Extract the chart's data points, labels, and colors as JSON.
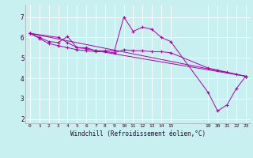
{
  "background_color": "#c8f0f0",
  "line_color": "#aa00aa",
  "xlabel": "Windchill (Refroidissement éolien,°C)",
  "xlim": [
    -0.5,
    23.5
  ],
  "ylim": [
    1.8,
    7.6
  ],
  "yticks": [
    2,
    3,
    4,
    5,
    6,
    7
  ],
  "xticks": [
    0,
    1,
    2,
    3,
    4,
    5,
    6,
    7,
    8,
    9,
    10,
    11,
    12,
    13,
    14,
    15,
    19,
    20,
    21,
    22,
    23
  ],
  "lines": [
    {
      "x": [
        0,
        1,
        2,
        3,
        4,
        5,
        6,
        7,
        8,
        9,
        10,
        11,
        12,
        13,
        14,
        15,
        19,
        20,
        21,
        22,
        23
      ],
      "y": [
        6.2,
        6.0,
        5.8,
        5.75,
        6.05,
        5.5,
        5.5,
        5.35,
        5.35,
        5.35,
        7.0,
        6.3,
        6.5,
        6.4,
        6.0,
        5.8,
        3.3,
        2.4,
        2.7,
        3.5,
        4.1
      ]
    },
    {
      "x": [
        0,
        1,
        2,
        3,
        4,
        5,
        6,
        7,
        8,
        9,
        10,
        11,
        12,
        13,
        14,
        15,
        19,
        20,
        21,
        22,
        23
      ],
      "y": [
        6.2,
        5.95,
        5.7,
        5.6,
        5.5,
        5.4,
        5.35,
        5.3,
        5.3,
        5.25,
        5.4,
        5.35,
        5.35,
        5.3,
        5.3,
        5.25,
        4.5,
        4.4,
        4.3,
        4.2,
        4.1
      ]
    },
    {
      "x": [
        0,
        3,
        4,
        5,
        6,
        7,
        23
      ],
      "y": [
        6.2,
        6.0,
        5.75,
        5.5,
        5.45,
        5.35,
        4.1
      ]
    },
    {
      "x": [
        0,
        23
      ],
      "y": [
        6.2,
        4.1
      ]
    }
  ]
}
